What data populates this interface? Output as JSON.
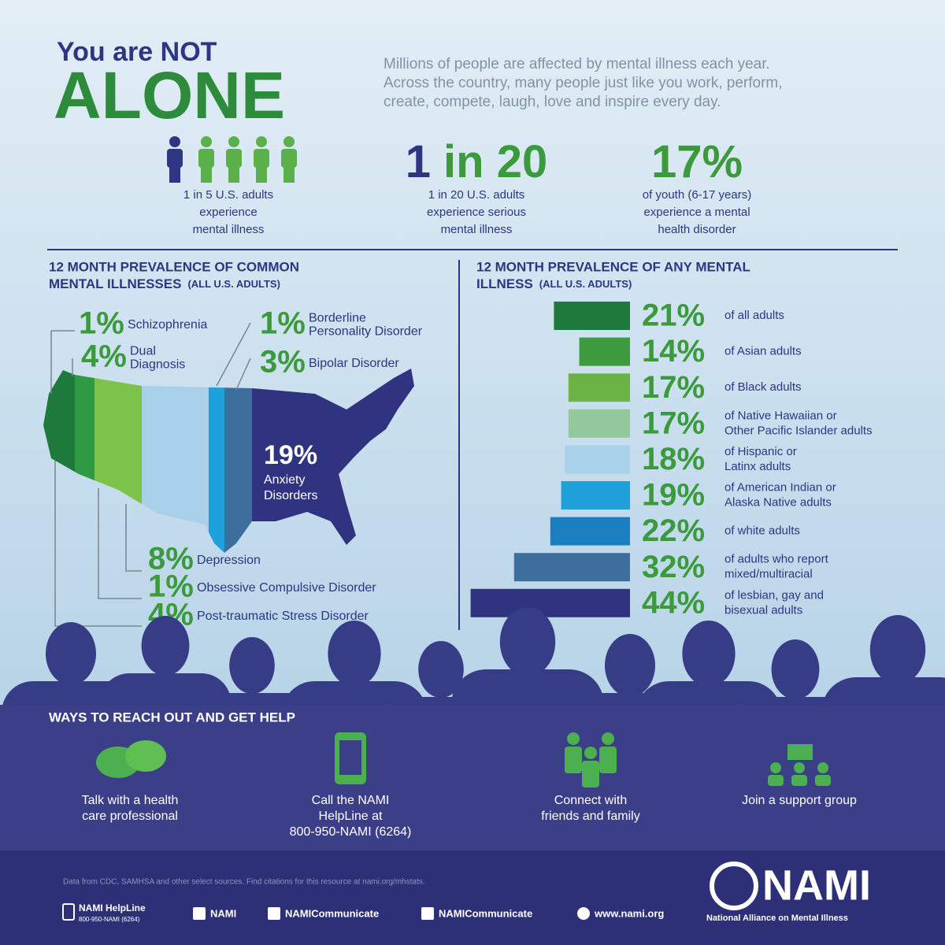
{
  "header": {
    "title_small": "You are NOT",
    "title_big": "ALONE",
    "intro": [
      "Millions of people are affected by mental illness each year.",
      "Across the country, many people just like you work, perform,",
      "create, compete, laugh, love and inspire every day."
    ]
  },
  "stats": [
    {
      "lines": [
        "1 in 5 U.S. adults",
        "experience",
        "mental illness"
      ]
    },
    {
      "big": [
        "1",
        "in 20"
      ],
      "lines": [
        "1 in 20 U.S. adults",
        "experience serious",
        "mental illness"
      ]
    },
    {
      "big": [
        "17%"
      ],
      "lines": [
        "of youth (6-17 years)",
        "experience a mental",
        "health disorder"
      ]
    }
  ],
  "common_illnesses": {
    "title": [
      "12 MONTH PREVALENCE OF COMMON",
      "MENTAL ILLNESSES"
    ],
    "subtitle": "(ALL U.S. ADULTS)",
    "items": [
      {
        "label": "1%",
        "name": [
          "Schizophrenia"
        ]
      },
      {
        "label": "1%",
        "name": [
          "Borderline",
          "Personality Disorder"
        ]
      },
      {
        "label": "4%",
        "name": [
          "Dual",
          "Diagnosis"
        ]
      },
      {
        "label": "3%",
        "name": [
          "Bipolar Disorder"
        ]
      },
      {
        "label": "19%",
        "name": [
          "Anxiety",
          "Disorders"
        ]
      },
      {
        "label": "8%",
        "name": [
          "Depression"
        ]
      },
      {
        "label": "1%",
        "name": [
          "Obsessive Compulsive Disorder"
        ]
      },
      {
        "label": "4%",
        "name": [
          "Post-traumatic Stress Disorder"
        ]
      }
    ]
  },
  "prevalence_by_group": {
    "title": [
      "12 MONTH PREVALENCE OF ANY MENTAL",
      "ILLNESS"
    ],
    "subtitle": "(ALL U.S. ADULTS)",
    "bars": [
      {
        "value": 21,
        "label": "21%",
        "color": "#1e7a3c",
        "text": [
          "of all adults"
        ]
      },
      {
        "value": 14,
        "label": "14%",
        "color": "#3d9a3f",
        "text": [
          "of Asian adults"
        ]
      },
      {
        "value": 17,
        "label": "17%",
        "color": "#6ab344",
        "text": [
          "of Black adults"
        ]
      },
      {
        "value": 17,
        "label": "17%",
        "color": "#93c89c",
        "text": [
          "of Native Hawaiian or",
          "Other Pacific Islander adults"
        ]
      },
      {
        "value": 18,
        "label": "18%",
        "color": "#a9d1ea",
        "text": [
          "of Hispanic or",
          "Latinx adults"
        ]
      },
      {
        "value": 19,
        "label": "19%",
        "color": "#1fa0db",
        "text": [
          "of American Indian or",
          "Alaska Native adults"
        ]
      },
      {
        "value": 22,
        "label": "22%",
        "color": "#1a7fc0",
        "text": [
          "of white adults"
        ]
      },
      {
        "value": 32,
        "label": "32%",
        "color": "#3e6e9e",
        "text": [
          "of adults who report",
          "mixed/multiracial"
        ]
      },
      {
        "value": 44,
        "label": "44%",
        "color": "#2f3380",
        "text": [
          "of lesbian, gay and",
          "bisexual adults"
        ]
      }
    ]
  },
  "help": {
    "title": "WAYS TO REACH OUT AND GET HELP",
    "items": [
      {
        "lines": [
          "Talk with a health",
          "care professional"
        ]
      },
      {
        "lines": [
          "Call the NAMI",
          "HelpLine at",
          "800-950-NAMI (6264)"
        ]
      },
      {
        "lines": [
          "Connect with",
          "friends and family"
        ]
      },
      {
        "lines": [
          "Join a support group"
        ]
      }
    ]
  },
  "footer": {
    "source": "Data from CDC, SAMHSA and other select sources. Find citations for this resource at nami.org/mhstats.",
    "helpline": [
      "NAMI HelpLine",
      "800-950-NAMI (6264)"
    ],
    "social": [
      "NAMI",
      "NAMICommunicate",
      "NAMICommunicate",
      "www.nami.org"
    ],
    "logo": "NAMI",
    "org": "National Alliance on Mental Illness"
  }
}
